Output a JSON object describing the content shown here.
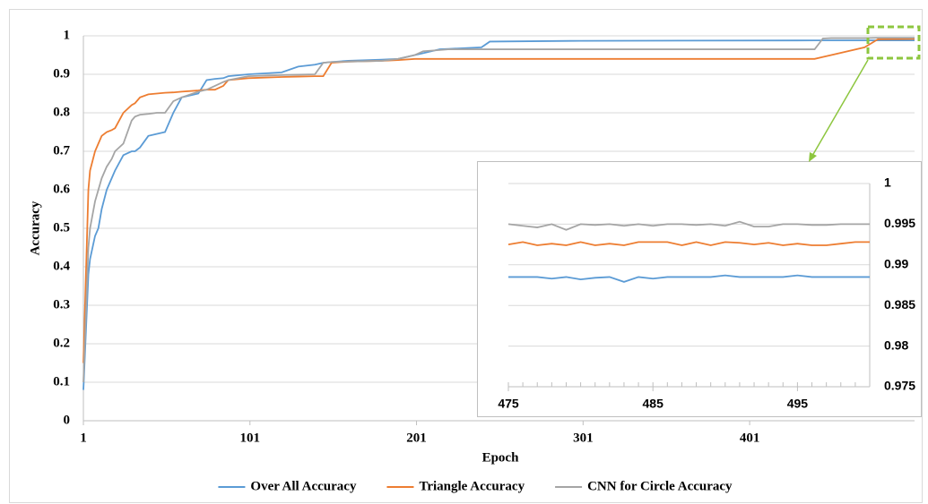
{
  "chart_data": [
    {
      "type": "line",
      "xlabel": "Epoch",
      "ylabel": "Accuracy",
      "xlim": [
        1,
        500
      ],
      "xticks": [
        1,
        101,
        201,
        301,
        401
      ],
      "ylim": [
        0,
        1
      ],
      "yticks": [
        0,
        0.1,
        0.2,
        0.3,
        0.4,
        0.5,
        0.6,
        0.7,
        0.8,
        0.9,
        1
      ],
      "grid": true,
      "legend": "bottom",
      "x": [
        1,
        4,
        5,
        8,
        10,
        12,
        15,
        18,
        20,
        25,
        30,
        32,
        35,
        40,
        45,
        50,
        55,
        60,
        70,
        75,
        80,
        85,
        88,
        100,
        120,
        130,
        140,
        145,
        150,
        160,
        180,
        190,
        200,
        205,
        215,
        220,
        240,
        245,
        300,
        440,
        445,
        450,
        470,
        478,
        500
      ],
      "series": [
        {
          "name": "Over All Accuracy",
          "color": "#5b9bd5",
          "values": [
            0.08,
            0.38,
            0.42,
            0.48,
            0.5,
            0.55,
            0.6,
            0.63,
            0.65,
            0.69,
            0.7,
            0.7,
            0.71,
            0.74,
            0.745,
            0.75,
            0.8,
            0.84,
            0.85,
            0.885,
            0.888,
            0.89,
            0.895,
            0.9,
            0.905,
            0.92,
            0.925,
            0.93,
            0.932,
            0.935,
            0.938,
            0.94,
            0.95,
            0.955,
            0.965,
            0.966,
            0.97,
            0.985,
            0.987,
            0.988,
            0.988,
            0.988,
            0.988,
            0.988,
            0.988
          ]
        },
        {
          "name": "Triangle Accuracy",
          "color": "#ed7d31",
          "values": [
            0.15,
            0.6,
            0.65,
            0.7,
            0.72,
            0.74,
            0.75,
            0.755,
            0.76,
            0.8,
            0.82,
            0.825,
            0.84,
            0.848,
            0.85,
            0.852,
            0.853,
            0.855,
            0.858,
            0.86,
            0.86,
            0.87,
            0.885,
            0.89,
            0.893,
            0.894,
            0.895,
            0.895,
            0.93,
            0.933,
            0.935,
            0.937,
            0.94,
            0.94,
            0.94,
            0.94,
            0.94,
            0.94,
            0.94,
            0.94,
            0.945,
            0.95,
            0.97,
            0.991,
            0.992
          ]
        },
        {
          "name": "CNN for Circle Accuracy",
          "color": "#a5a5a5",
          "values": [
            0.1,
            0.45,
            0.5,
            0.57,
            0.6,
            0.63,
            0.66,
            0.68,
            0.7,
            0.72,
            0.78,
            0.79,
            0.795,
            0.797,
            0.8,
            0.8,
            0.83,
            0.84,
            0.855,
            0.86,
            0.87,
            0.88,
            0.885,
            0.895,
            0.898,
            0.899,
            0.9,
            0.93,
            0.932,
            0.933,
            0.935,
            0.94,
            0.95,
            0.96,
            0.963,
            0.965,
            0.965,
            0.965,
            0.965,
            0.965,
            0.993,
            0.994,
            0.994,
            0.995,
            0.995
          ]
        }
      ]
    },
    {
      "type": "line",
      "xlim": [
        475,
        500
      ],
      "xticks": [
        475,
        485,
        495
      ],
      "ylim": [
        0.975,
        1
      ],
      "yticks": [
        0.975,
        0.98,
        0.985,
        0.99,
        0.995,
        1
      ],
      "grid": true,
      "x": [
        475,
        476,
        477,
        478,
        479,
        480,
        481,
        482,
        483,
        484,
        485,
        486,
        487,
        488,
        489,
        490,
        491,
        492,
        493,
        494,
        495,
        496,
        497,
        498,
        499,
        500
      ],
      "series": [
        {
          "color": "#5b9bd5",
          "values": [
            0.9885,
            0.9885,
            0.9885,
            0.9883,
            0.9885,
            0.9882,
            0.9884,
            0.9885,
            0.9879,
            0.9885,
            0.9883,
            0.9885,
            0.9885,
            0.9885,
            0.9885,
            0.9887,
            0.9885,
            0.9885,
            0.9885,
            0.9885,
            0.9887,
            0.9885,
            0.9885,
            0.9885,
            0.9885,
            0.9885
          ]
        },
        {
          "color": "#ed7d31",
          "values": [
            0.9925,
            0.9928,
            0.9924,
            0.9926,
            0.9924,
            0.9928,
            0.9924,
            0.9926,
            0.9924,
            0.9928,
            0.9928,
            0.9928,
            0.9924,
            0.9928,
            0.9924,
            0.9928,
            0.9927,
            0.9925,
            0.9927,
            0.9924,
            0.9926,
            0.9924,
            0.9924,
            0.9926,
            0.9928,
            0.9928
          ]
        },
        {
          "color": "#a5a5a5",
          "values": [
            0.995,
            0.9948,
            0.9946,
            0.995,
            0.9943,
            0.995,
            0.9949,
            0.995,
            0.9948,
            0.995,
            0.9948,
            0.995,
            0.995,
            0.9949,
            0.995,
            0.9948,
            0.9953,
            0.9947,
            0.9947,
            0.995,
            0.995,
            0.9949,
            0.9949,
            0.995,
            0.995,
            0.995
          ]
        }
      ]
    }
  ]
}
